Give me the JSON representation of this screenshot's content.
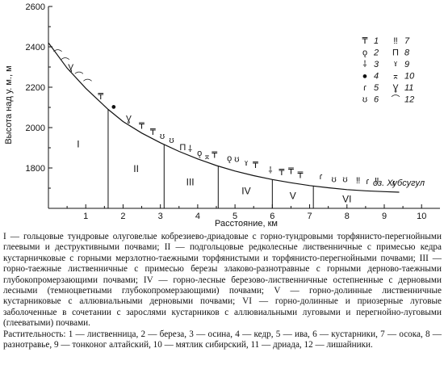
{
  "chart_data": {
    "type": "line",
    "ylabel": "Высота над у. м., м",
    "xlabel": "Расстояние, км",
    "xlim": [
      0,
      10
    ],
    "ylim": [
      1600,
      2600
    ],
    "x_ticks": [
      1,
      2,
      3,
      4,
      5,
      6,
      7,
      8,
      9,
      10
    ],
    "y_ticks": [
      1800,
      2000,
      2200,
      2400,
      2600
    ],
    "grid": false,
    "profile": {
      "x": [
        0,
        0.5,
        1.0,
        1.6,
        2.0,
        2.5,
        3.0,
        3.5,
        4.0,
        4.5,
        5.0,
        5.5,
        6.0,
        6.5,
        7.0,
        7.5,
        8.0,
        8.5,
        9.0,
        9.4
      ],
      "y": [
        2420,
        2295,
        2195,
        2090,
        2030,
        1973,
        1925,
        1882,
        1845,
        1812,
        1785,
        1762,
        1743,
        1727,
        1713,
        1702,
        1693,
        1687,
        1683,
        1680
      ]
    },
    "zone_boundaries_km": [
      1.6,
      3.1,
      4.55,
      6.0,
      7.1
    ],
    "zones": [
      {
        "label": "I",
        "x": 0.8
      },
      {
        "label": "II",
        "x": 2.35
      },
      {
        "label": "III",
        "x": 3.8
      },
      {
        "label": "IV",
        "x": 5.3
      },
      {
        "label": "V",
        "x": 6.55
      },
      {
        "label": "VI",
        "x": 8.0
      }
    ],
    "end_label": "оз. Хубсугул",
    "legend": [
      {
        "num": "1",
        "symbol": "₸"
      },
      {
        "num": "2",
        "symbol": "ǫ"
      },
      {
        "num": "3",
        "symbol": "⸸"
      },
      {
        "num": "4",
        "symbol": "●"
      },
      {
        "num": "5",
        "symbol": "ɾ"
      },
      {
        "num": "6",
        "symbol": "ʊ"
      },
      {
        "num": "7",
        "symbol": "‼"
      },
      {
        "num": "8",
        "symbol": "Π"
      },
      {
        "num": "9",
        "symbol": "ˠ"
      },
      {
        "num": "10",
        "symbol": "⌅"
      },
      {
        "num": "11",
        "symbol": "Ɣ"
      },
      {
        "num": "12",
        "symbol": "⌒"
      }
    ],
    "legend_placement": "top-right",
    "vegetation_marks": [
      {
        "x": 0.25,
        "y": 2350,
        "symbol": "⌒"
      },
      {
        "x": 0.45,
        "y": 2310,
        "symbol": "⌒"
      },
      {
        "x": 0.6,
        "y": 2285,
        "symbol": "Ɣ"
      },
      {
        "x": 0.82,
        "y": 2240,
        "symbol": "⌒"
      },
      {
        "x": 1.05,
        "y": 2205,
        "symbol": "⌒"
      },
      {
        "x": 1.4,
        "y": 2140,
        "symbol": "₸"
      },
      {
        "x": 1.75,
        "y": 2090,
        "symbol": "●"
      },
      {
        "x": 2.15,
        "y": 2030,
        "symbol": "Ɣ"
      },
      {
        "x": 2.5,
        "y": 1995,
        "symbol": "₸"
      },
      {
        "x": 2.8,
        "y": 1965,
        "symbol": "₸"
      },
      {
        "x": 3.05,
        "y": 1945,
        "symbol": "ʊ"
      },
      {
        "x": 3.3,
        "y": 1925,
        "symbol": "ʊ"
      },
      {
        "x": 3.6,
        "y": 1888,
        "symbol": "Π"
      },
      {
        "x": 3.8,
        "y": 1880,
        "symbol": "⸸"
      },
      {
        "x": 4.05,
        "y": 1860,
        "symbol": "ǫ"
      },
      {
        "x": 4.25,
        "y": 1845,
        "symbol": "⌅"
      },
      {
        "x": 4.45,
        "y": 1850,
        "symbol": "₸"
      },
      {
        "x": 4.85,
        "y": 1835,
        "symbol": "ǫ"
      },
      {
        "x": 5.05,
        "y": 1830,
        "symbol": "ʊ"
      },
      {
        "x": 5.3,
        "y": 1808,
        "symbol": "ˠ"
      },
      {
        "x": 5.55,
        "y": 1800,
        "symbol": "₸"
      },
      {
        "x": 5.95,
        "y": 1775,
        "symbol": "⸸"
      },
      {
        "x": 6.25,
        "y": 1765,
        "symbol": "₸"
      },
      {
        "x": 6.5,
        "y": 1770,
        "symbol": "₸"
      },
      {
        "x": 6.75,
        "y": 1750,
        "symbol": "₸"
      },
      {
        "x": 7.3,
        "y": 1745,
        "symbol": "ɾ"
      },
      {
        "x": 7.65,
        "y": 1730,
        "symbol": "ʊ"
      },
      {
        "x": 7.95,
        "y": 1730,
        "symbol": "ʊ"
      },
      {
        "x": 8.3,
        "y": 1725,
        "symbol": "‼"
      },
      {
        "x": 8.55,
        "y": 1720,
        "symbol": "ɾ"
      },
      {
        "x": 8.8,
        "y": 1722,
        "symbol": "‼"
      },
      {
        "x": 9.25,
        "y": 1712,
        "symbol": "ɾ"
      }
    ]
  },
  "caption": {
    "zones_text": "I — гольцовые тундровые олуговелые кобрезиево-дриадовые с горно-тундровыми торфянисто-перегнойными глеевыми и деструктивными почвами; II — подгольцовые редколесные лиственничные с примесью кедра кустарничковые с горными мерзлотно-таежными торфянистыми и торфянисто-перегнойными почвами; III — горно-таежные лиственничные с примесью березы злаково-разнотравные с горными дерново-таежными глубокопромерзающими почвами; IV — горно-лесные березово-лиственничные остепненные с дерновыми лесными (темноцветными глубокопромерзающими) почвами; V — горно-долинные лиственничные кустарниковые с аллювиальными дерновыми почвами; VI — горно-долинные и приозерные луговые заболоченные в сочетании с зарослями кустарников с аллювиальными луговыми и перегнойно-луговыми (глееватыми) почвами.",
    "vegetation_text": "Растительность: 1 — лиственница, 2 — береза, 3 — осина, 4 — кедр, 5 — ива, 6 — кустарники, 7 — осока, 8 — разнотравье, 9 — тонконог алтайский, 10 — мятлик сибирский, 11 — дриада, 12 — лишайники."
  }
}
